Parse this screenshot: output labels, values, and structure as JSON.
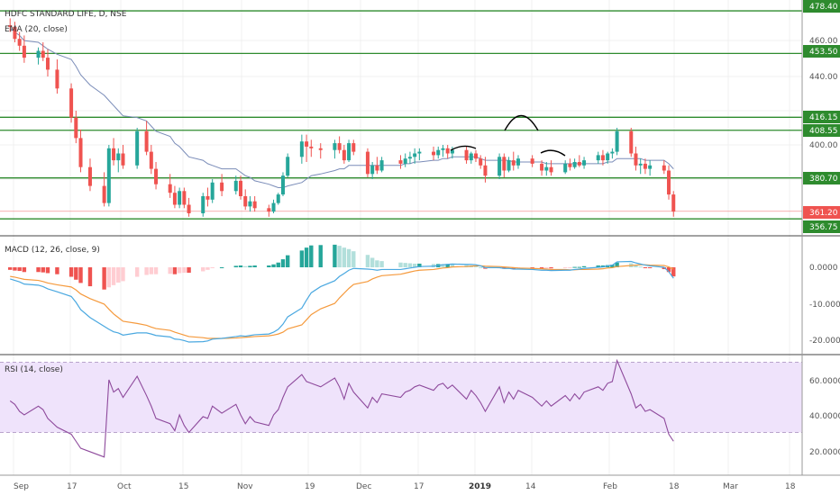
{
  "header": {
    "symbol_title": "HDFC STANDARD LIFE, D, NSE",
    "ema_label": "EMA (20, close)"
  },
  "colors": {
    "up": "#26a69a",
    "down": "#ef5350",
    "level_line": "#2e8b2e",
    "ema": "#7a8cb8",
    "macd_line": "#4aa8e0",
    "signal_line": "#f59a3d",
    "rsi_line": "#8e4a9c",
    "rsi_band": "#efe3fb",
    "current_price": "#ef5350",
    "arc": "#000000"
  },
  "price_axis": {
    "ticks": [
      "460.00",
      "440.00",
      "400.00"
    ],
    "level_tags": [
      "478.40",
      "453.50",
      "416.15",
      "408.55",
      "380.70",
      "356.75"
    ],
    "current_price_tag": "361.20"
  },
  "macd_panel": {
    "label": "MACD (12, 26, close, 9)",
    "ticks": [
      "0.0000",
      "-10.0000",
      "-20.0000"
    ]
  },
  "rsi_panel": {
    "label": "RSI (14, close)",
    "ticks": [
      "60.0000",
      "40.0000",
      "20.0000"
    ]
  },
  "time_axis": {
    "labels": [
      "Sep",
      "17",
      "Oct",
      "15",
      "Nov",
      "19",
      "Dec",
      "17",
      "2019",
      "14",
      "Feb",
      "18",
      "Mar",
      "18"
    ]
  },
  "chart_data": [
    {
      "type": "candlestick",
      "title": "HDFC STANDARD LIFE, D, NSE",
      "ylim": [
        350,
        480
      ],
      "horizontal_levels": [
        478.4,
        453.5,
        416.15,
        408.55,
        380.7,
        356.75
      ],
      "current_price": 361.2,
      "x_range": [
        "2018-09-03",
        "2019-03-18"
      ],
      "x": [
        "2018-09-04",
        "2018-09-05",
        "2018-09-06",
        "2018-09-07",
        "2018-09-10",
        "2018-09-11",
        "2018-09-12",
        "2018-09-14",
        "2018-09-17",
        "2018-09-18",
        "2018-09-19",
        "2018-09-21",
        "2018-09-24",
        "2018-09-25",
        "2018-09-26",
        "2018-09-27",
        "2018-09-28",
        "2018-10-01",
        "2018-10-03",
        "2018-10-04",
        "2018-10-05",
        "2018-10-08",
        "2018-10-09",
        "2018-10-10",
        "2018-10-11",
        "2018-10-12",
        "2018-10-15",
        "2018-10-16",
        "2018-10-17",
        "2018-10-19",
        "2018-10-22",
        "2018-10-23",
        "2018-10-24",
        "2018-10-25",
        "2018-10-26",
        "2018-10-29",
        "2018-10-30",
        "2018-10-31",
        "2018-11-01",
        "2018-11-02",
        "2018-11-05",
        "2018-11-06",
        "2018-11-07",
        "2018-11-09",
        "2018-11-12",
        "2018-11-13",
        "2018-11-14",
        "2018-11-15",
        "2018-11-16",
        "2018-11-19",
        "2018-11-20",
        "2018-11-21",
        "2018-11-22",
        "2018-11-26",
        "2018-11-27",
        "2018-11-28",
        "2018-11-29",
        "2018-11-30",
        "2018-12-03",
        "2018-12-04",
        "2018-12-05",
        "2018-12-06",
        "2018-12-07",
        "2018-12-10",
        "2018-12-11",
        "2018-12-12",
        "2018-12-13",
        "2018-12-14",
        "2018-12-17",
        "2018-12-18",
        "2018-12-19",
        "2018-12-20",
        "2018-12-21",
        "2018-12-24",
        "2018-12-26",
        "2018-12-27",
        "2018-12-28",
        "2018-12-31",
        "2019-01-01",
        "2019-01-02",
        "2019-01-03",
        "2019-01-04",
        "2019-01-07",
        "2019-01-08",
        "2019-01-09",
        "2019-01-10",
        "2019-01-11",
        "2019-01-14",
        "2019-01-15",
        "2019-01-16",
        "2019-01-17",
        "2019-01-18",
        "2019-01-21",
        "2019-01-22",
        "2019-01-23"
      ],
      "ohlc": [
        [
          470,
          474,
          466,
          469
        ],
        [
          469,
          472,
          460,
          462
        ],
        [
          462,
          466,
          455,
          458
        ],
        [
          458,
          464,
          448,
          451
        ],
        [
          451,
          457,
          447,
          455
        ],
        [
          455,
          460,
          449,
          451
        ],
        [
          451,
          456,
          440,
          444
        ],
        [
          444,
          450,
          430,
          433
        ],
        [
          433,
          436,
          413,
          416
        ],
        [
          416,
          420,
          401,
          404
        ],
        [
          404,
          409,
          384,
          387
        ],
        [
          387,
          392,
          373,
          376
        ],
        [
          376,
          384,
          364,
          366
        ],
        [
          366,
          400,
          364,
          398
        ],
        [
          398,
          404,
          388,
          391
        ],
        [
          391,
          398,
          384,
          395
        ],
        [
          395,
          400,
          386,
          388
        ],
        [
          388,
          410,
          386,
          408
        ],
        [
          408,
          414,
          394,
          396
        ],
        [
          396,
          400,
          383,
          386
        ],
        [
          386,
          390,
          374,
          377
        ],
        [
          377,
          383,
          369,
          372
        ],
        [
          372,
          376,
          363,
          365
        ],
        [
          365,
          375,
          363,
          373
        ],
        [
          373,
          375,
          363,
          365
        ],
        [
          365,
          369,
          358,
          360
        ],
        [
          360,
          372,
          358,
          370
        ],
        [
          370,
          375,
          364,
          368
        ],
        [
          368,
          380,
          366,
          378
        ],
        [
          378,
          383,
          370,
          373
        ],
        [
          373,
          382,
          371,
          379
        ],
        [
          379,
          382,
          368,
          370
        ],
        [
          370,
          374,
          362,
          364
        ],
        [
          364,
          370,
          361,
          367
        ],
        [
          367,
          370,
          361,
          363
        ],
        [
          363,
          365,
          358,
          361
        ],
        [
          361,
          368,
          360,
          366
        ],
        [
          366,
          372,
          365,
          371
        ],
        [
          371,
          384,
          370,
          382
        ],
        [
          382,
          395,
          381,
          393
        ],
        [
          393,
          406,
          389,
          402
        ],
        [
          402,
          406,
          390,
          399
        ],
        [
          399,
          403,
          393,
          398
        ],
        [
          398,
          401,
          392,
          397
        ],
        [
          397,
          403,
          392,
          401
        ],
        [
          401,
          405,
          395,
          397
        ],
        [
          397,
          400,
          389,
          391
        ],
        [
          391,
          403,
          390,
          401
        ],
        [
          401,
          403,
          394,
          396
        ],
        [
          396,
          398,
          381,
          383
        ],
        [
          383,
          390,
          380,
          388
        ],
        [
          388,
          393,
          383,
          385
        ],
        [
          385,
          393,
          384,
          391
        ],
        [
          391,
          394,
          386,
          389
        ],
        [
          389,
          395,
          387,
          392
        ],
        [
          392,
          396,
          389,
          393
        ],
        [
          393,
          398,
          389,
          395
        ],
        [
          395,
          398,
          391,
          396
        ],
        [
          396,
          399,
          391,
          394
        ],
        [
          394,
          399,
          392,
          397
        ],
        [
          397,
          400,
          393,
          398
        ],
        [
          398,
          400,
          392,
          395
        ],
        [
          395,
          399,
          392,
          397
        ],
        [
          397,
          399,
          389,
          391
        ],
        [
          391,
          396,
          389,
          395
        ],
        [
          395,
          397,
          390,
          392
        ],
        [
          392,
          394,
          386,
          388
        ],
        [
          388,
          393,
          378,
          382
        ],
        [
          382,
          395,
          380,
          393
        ],
        [
          393,
          395,
          381,
          385
        ],
        [
          385,
          393,
          384,
          391
        ],
        [
          391,
          396,
          385,
          388
        ],
        [
          388,
          394,
          386,
          392
        ],
        [
          392,
          394,
          387,
          389
        ],
        [
          389,
          391,
          382,
          385
        ],
        [
          385,
          390,
          382,
          387
        ],
        [
          387,
          391,
          382,
          384
        ],
        [
          384,
          391,
          383,
          389
        ],
        [
          389,
          392,
          385,
          387
        ],
        [
          387,
          392,
          386,
          390
        ],
        [
          390,
          394,
          387,
          388
        ],
        [
          388,
          393,
          386,
          391
        ],
        [
          391,
          396,
          389,
          394
        ],
        [
          394,
          397,
          388,
          391
        ],
        [
          391,
          396,
          389,
          395
        ],
        [
          395,
          398,
          392,
          396
        ],
        [
          396,
          410,
          394,
          408
        ],
        [
          408,
          410,
          393,
          395
        ],
        [
          395,
          399,
          385,
          388
        ],
        [
          388,
          392,
          383,
          389
        ],
        [
          389,
          392,
          383,
          386
        ],
        [
          386,
          391,
          382,
          388
        ],
        [
          388,
          391,
          383,
          385
        ],
        [
          385,
          388,
          368,
          371
        ],
        [
          371,
          373,
          358,
          361
        ]
      ],
      "ema_20_close": [
        468,
        466,
        464,
        461,
        460,
        458,
        456,
        453,
        450,
        446,
        441,
        435,
        429,
        426,
        423,
        420,
        417,
        416,
        414,
        411,
        408,
        405,
        401,
        399,
        396,
        393,
        391,
        389,
        388,
        386,
        386,
        384,
        382,
        381,
        379,
        377,
        376,
        375,
        375,
        376,
        378,
        380,
        382,
        383,
        385,
        386,
        386,
        388,
        388,
        388,
        388,
        388,
        388,
        388,
        389,
        389,
        390,
        390,
        391,
        391,
        392,
        392,
        393,
        393,
        393,
        393,
        392,
        391,
        391,
        391,
        391,
        390,
        390,
        390,
        390,
        389,
        389,
        389,
        389,
        389,
        389,
        389,
        389,
        389,
        390,
        390,
        392,
        392,
        392,
        392,
        391,
        391,
        391,
        389,
        386
      ]
    },
    {
      "type": "macd",
      "title": "MACD (12, 26, close, 9)",
      "ylim": [
        -25,
        6
      ],
      "x_ref": "same dates as price panel",
      "macd": [
        -3.2,
        -3.6,
        -4.0,
        -4.6,
        -4.9,
        -5.3,
        -5.9,
        -6.7,
        -8.0,
        -9.6,
        -11.6,
        -13.8,
        -16.2,
        -17.0,
        -17.7,
        -18.0,
        -18.6,
        -18.0,
        -18.0,
        -18.3,
        -18.7,
        -19.1,
        -19.7,
        -19.8,
        -20.1,
        -20.5,
        -20.4,
        -20.2,
        -19.7,
        -19.5,
        -19.0,
        -18.8,
        -18.9,
        -18.7,
        -18.5,
        -18.3,
        -17.8,
        -17.0,
        -15.6,
        -13.6,
        -11.2,
        -9.0,
        -7.0,
        -5.3,
        -3.7,
        -2.5,
        -1.7,
        -0.8,
        -0.3,
        -0.5,
        -0.6,
        -0.8,
        -0.6,
        -0.6,
        -0.4,
        -0.2,
        0.0,
        0.2,
        0.3,
        0.5,
        0.7,
        0.8,
        0.9,
        0.8,
        0.8,
        0.7,
        0.4,
        -0.1,
        -0.1,
        -0.3,
        -0.3,
        -0.5,
        -0.5,
        -0.6,
        -0.8,
        -0.8,
        -0.9,
        -0.8,
        -0.8,
        -0.6,
        -0.5,
        -0.3,
        0.0,
        0.1,
        0.4,
        0.6,
        1.5,
        1.6,
        1.2,
        0.9,
        0.6,
        0.4,
        0.0,
        -1.2,
        -3.0
      ],
      "signal": [
        -2.5,
        -2.7,
        -3.0,
        -3.3,
        -3.6,
        -3.9,
        -4.3,
        -4.8,
        -5.4,
        -6.2,
        -7.3,
        -8.6,
        -10.1,
        -11.5,
        -12.8,
        -13.8,
        -14.8,
        -15.4,
        -15.9,
        -16.4,
        -16.8,
        -17.3,
        -17.8,
        -18.2,
        -18.6,
        -19.0,
        -19.3,
        -19.5,
        -19.5,
        -19.5,
        -19.4,
        -19.3,
        -19.2,
        -19.1,
        -19.0,
        -18.8,
        -18.6,
        -18.3,
        -17.8,
        -16.9,
        -15.8,
        -14.4,
        -13.0,
        -11.4,
        -9.9,
        -8.4,
        -7.1,
        -5.8,
        -4.7,
        -3.9,
        -3.2,
        -2.7,
        -2.3,
        -1.9,
        -1.6,
        -1.3,
        -1.0,
        -0.8,
        -0.6,
        -0.4,
        -0.2,
        -0.1,
        0.1,
        0.2,
        0.3,
        0.4,
        0.4,
        0.3,
        0.2,
        0.1,
        0.0,
        -0.1,
        -0.2,
        -0.3,
        -0.4,
        -0.5,
        -0.6,
        -0.6,
        -0.7,
        -0.7,
        -0.6,
        -0.6,
        -0.5,
        -0.4,
        -0.2,
        -0.1,
        0.2,
        0.5,
        0.6,
        0.7,
        0.7,
        0.6,
        0.5,
        0.1,
        -0.5
      ]
    },
    {
      "type": "rsi",
      "title": "RSI (14, close)",
      "ylim": [
        13,
        72
      ],
      "band": [
        30,
        70
      ],
      "x_ref": "same dates as price panel",
      "values": [
        48,
        46,
        42,
        40,
        45,
        43,
        38,
        33,
        29,
        25,
        21,
        19,
        16,
        60,
        53,
        55,
        50,
        62,
        51,
        45,
        38,
        35,
        31,
        40,
        34,
        30,
        39,
        38,
        45,
        41,
        46,
        40,
        35,
        39,
        36,
        34,
        40,
        43,
        50,
        56,
        63,
        59,
        58,
        56,
        61,
        56,
        49,
        58,
        53,
        44,
        50,
        47,
        52,
        50,
        53,
        54,
        56,
        57,
        54,
        57,
        58,
        55,
        57,
        49,
        54,
        51,
        47,
        42,
        56,
        47,
        53,
        49,
        54,
        50,
        45,
        48,
        45,
        51,
        48,
        52,
        49,
        53,
        56,
        54,
        58,
        59,
        71,
        52,
        44,
        46,
        42,
        43,
        38,
        29,
        25
      ]
    }
  ]
}
